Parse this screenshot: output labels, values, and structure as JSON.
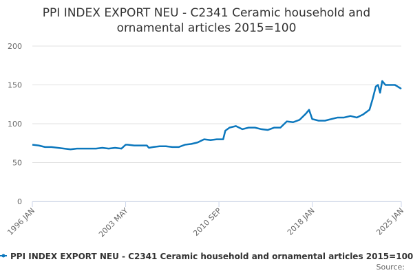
{
  "chart_data": {
    "type": "line",
    "title": "PPI INDEX EXPORT NEU - C2341 Ceramic household and ornamental articles 2015=100",
    "x": [
      "1996 JAN",
      "1996 JUL",
      "1997 JAN",
      "1997 JUL",
      "1998 JAN",
      "1998 JUL",
      "1999 JAN",
      "1999 JUL",
      "2000 JAN",
      "2000 JUL",
      "2001 JAN",
      "2001 JUL",
      "2002 JAN",
      "2002 JUL",
      "2003 JAN",
      "2003 MAY",
      "2003 JUL",
      "2004 JAN",
      "2004 JUL",
      "2005 JAN",
      "2005 MAR",
      "2005 JUL",
      "2006 JAN",
      "2006 JUL",
      "2007 JAN",
      "2007 JUL",
      "2008 JAN",
      "2008 JUL",
      "2009 JAN",
      "2009 JUL",
      "2010 JAN",
      "2010 JUL",
      "2011 JAN",
      "2011 MAR",
      "2011 JUL",
      "2012 JAN",
      "2012 JUL",
      "2013 JAN",
      "2013 JUL",
      "2014 JAN",
      "2014 JUL",
      "2015 JAN",
      "2015 JUL",
      "2016 JAN",
      "2016 JUL",
      "2017 JAN",
      "2017 JUL",
      "2017 OCT",
      "2018 JAN",
      "2018 JUL",
      "2019 JAN",
      "2019 JUL",
      "2020 JAN",
      "2020 JUL",
      "2021 JAN",
      "2021 JUL",
      "2022 JAN",
      "2022 JUL",
      "2022 OCT",
      "2023 JAN",
      "2023 MAR",
      "2023 MAY",
      "2023 JUL",
      "2023 OCT",
      "2024 JAN",
      "2024 JUL",
      "2025 JAN"
    ],
    "series": [
      {
        "name": "PPI INDEX EXPORT NEU - C2341 Ceramic household and ornamental articles 2015=100",
        "color": "#0b77bd",
        "values": [
          73,
          72,
          70,
          70,
          69,
          68,
          67,
          68,
          68,
          68,
          68,
          69,
          68,
          69,
          68,
          73,
          73,
          72,
          72,
          72,
          69,
          70,
          71,
          71,
          70,
          70,
          73,
          74,
          76,
          80,
          79,
          80,
          80,
          91,
          95,
          97,
          93,
          95,
          95,
          93,
          92,
          95,
          95,
          103,
          102,
          105,
          113,
          118,
          106,
          104,
          104,
          106,
          108,
          108,
          110,
          108,
          112,
          118,
          132,
          148,
          150,
          140,
          155,
          150,
          150,
          150,
          145
        ]
      }
    ],
    "xlim": [
      "1996 JAN",
      "2025 JAN"
    ],
    "xticks": [
      "1996 JAN",
      "2003 MAY",
      "2010 SEP",
      "2018 JAN",
      "2025 JAN"
    ],
    "ylim": [
      0,
      200
    ],
    "yticks": [
      0,
      50,
      100,
      150,
      200
    ],
    "grid": true,
    "legend": "bottom",
    "source": "Source:"
  }
}
